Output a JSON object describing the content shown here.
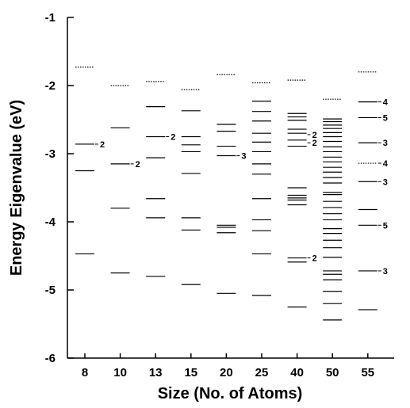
{
  "chart_data": {
    "type": "scatter",
    "xlabel": "Size (No. of Atoms)",
    "ylabel": "Energy Eigenvalue (eV)",
    "ylim": [
      -6,
      -1
    ],
    "yticks": [
      -1,
      -2,
      -3,
      -4,
      -5,
      -6
    ],
    "categories": [
      "8",
      "10",
      "13",
      "15",
      "20",
      "25",
      "40",
      "50",
      "55"
    ],
    "grid": false,
    "legend": "none",
    "colors": {
      "line": "#000000"
    },
    "levels": [
      {
        "size": "8",
        "dotted": [
          -1.73
        ],
        "solid": [
          -2.86,
          -3.25,
          -4.47
        ],
        "degeneracy": [
          {
            "energy": -2.86,
            "label": "2"
          }
        ]
      },
      {
        "size": "10",
        "dotted": [
          -2.0
        ],
        "solid": [
          -2.62,
          -3.15,
          -3.8,
          -4.75
        ],
        "degeneracy": [
          {
            "energy": -3.15,
            "label": "2"
          }
        ]
      },
      {
        "size": "13",
        "dotted": [
          -1.94
        ],
        "solid": [
          -2.31,
          -2.75,
          -3.06,
          -3.66,
          -3.94,
          -4.8
        ],
        "degeneracy": [
          {
            "energy": -2.75,
            "label": "2"
          }
        ]
      },
      {
        "size": "15",
        "dotted": [
          -2.06
        ],
        "solid": [
          -2.37,
          -2.75,
          -2.87,
          -2.97,
          -3.29,
          -3.94,
          -4.12,
          -4.92
        ],
        "degeneracy": []
      },
      {
        "size": "20",
        "dotted": [
          -1.84
        ],
        "solid": [
          -2.57,
          -2.67,
          -2.89,
          -3.03,
          -4.05,
          -4.08,
          -4.16,
          -5.05
        ],
        "degeneracy": [
          {
            "energy": -3.03,
            "label": "3"
          }
        ]
      },
      {
        "size": "25",
        "dotted": [
          -1.96
        ],
        "solid": [
          -2.23,
          -2.38,
          -2.52,
          -2.7,
          -2.83,
          -2.97,
          -3.15,
          -3.3,
          -3.66,
          -3.97,
          -4.13,
          -4.47,
          -5.08
        ],
        "degeneracy": []
      },
      {
        "size": "40",
        "dotted": [
          -1.92
        ],
        "solid": [
          -2.41,
          -2.46,
          -2.51,
          -2.64,
          -2.7,
          -2.8,
          -2.89,
          -3.5,
          -3.61,
          -3.65,
          -3.68,
          -3.75,
          -4.53,
          -4.59,
          -5.25
        ],
        "degeneracy": [
          {
            "energy": -2.72,
            "label": "2"
          },
          {
            "energy": -2.84,
            "label": "2"
          },
          {
            "energy": -4.53,
            "label": "2"
          }
        ]
      },
      {
        "size": "50",
        "dotted": [
          -2.2
        ],
        "solid": [
          -2.49,
          -2.53,
          -2.58,
          -2.63,
          -2.69,
          -2.75,
          -2.82,
          -2.9,
          -2.97,
          -3.05,
          -3.12,
          -3.2,
          -3.27,
          -3.35,
          -3.43,
          -3.57,
          -3.6,
          -3.7,
          -3.79,
          -3.88,
          -3.97,
          -4.1,
          -4.17,
          -4.27,
          -4.38,
          -4.52,
          -4.72,
          -4.77,
          -4.85,
          -5.02,
          -5.2,
          -5.44
        ],
        "degeneracy": []
      },
      {
        "size": "55",
        "dotted": [
          -1.8,
          -3.14
        ],
        "solid": [
          -2.24,
          -2.47,
          -2.84,
          -3.41,
          -3.82,
          -4.05,
          -4.72,
          -5.29
        ],
        "degeneracy": [
          {
            "energy": -2.24,
            "label": "4"
          },
          {
            "energy": -2.47,
            "label": "5"
          },
          {
            "energy": -2.84,
            "label": "3"
          },
          {
            "energy": -3.14,
            "label": "4"
          },
          {
            "energy": -3.41,
            "label": "3"
          },
          {
            "energy": -4.05,
            "label": "5"
          },
          {
            "energy": -4.72,
            "label": "3"
          }
        ]
      }
    ]
  }
}
